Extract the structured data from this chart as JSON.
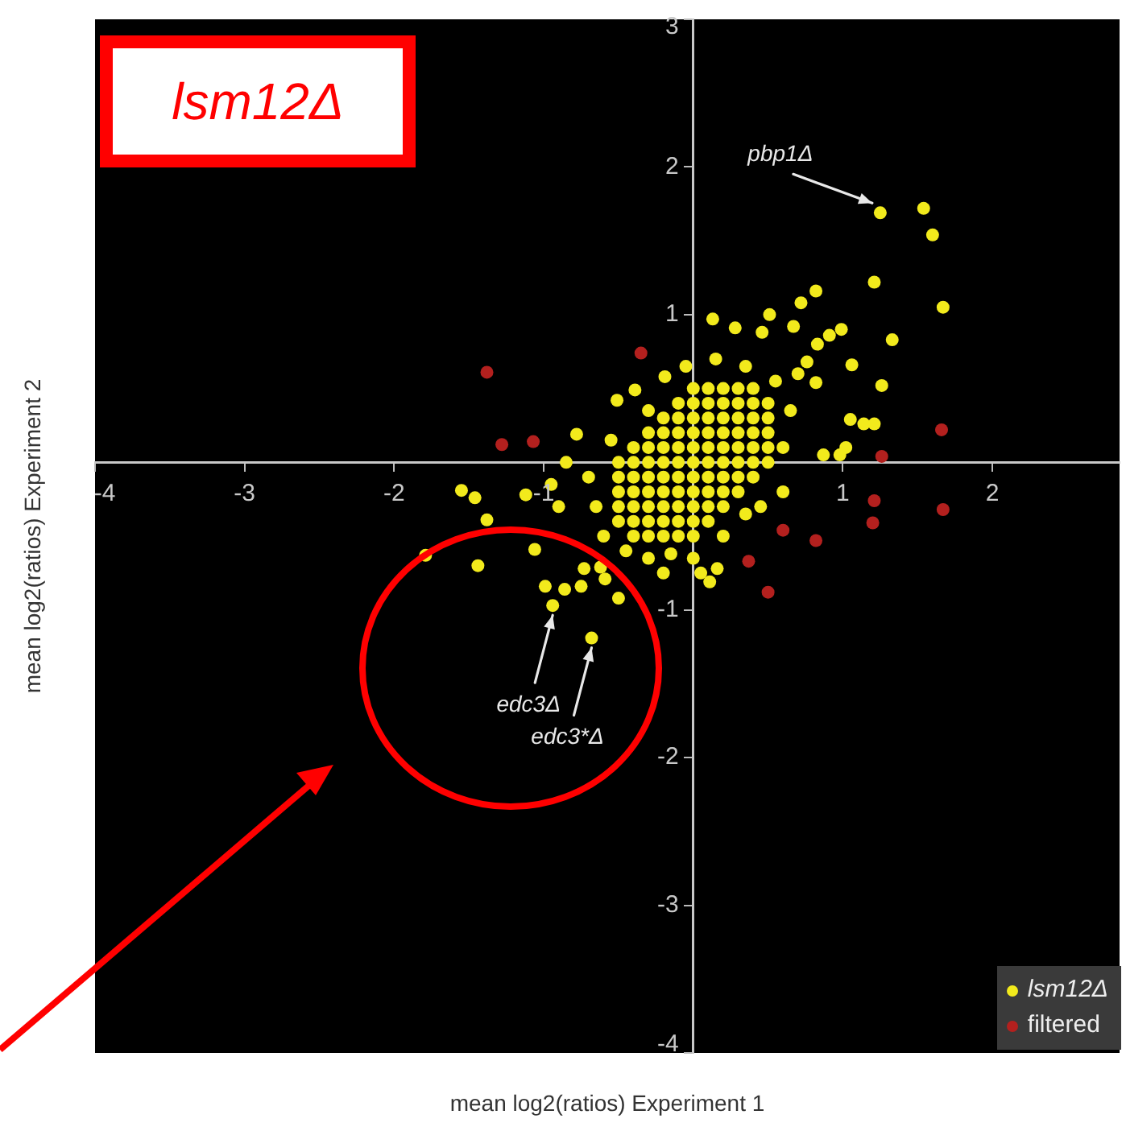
{
  "chart_data": {
    "type": "scatter",
    "title": "lsm12Δ",
    "xlabel": "mean log2(ratios) Experiment 1",
    "ylabel": "mean log2(ratios) Experiment 2",
    "annotations": [
      {
        "text": "pbp1Δ",
        "x": 1.25,
        "y": 1.69
      },
      {
        "text": "edc3Δ",
        "x": -0.94,
        "y": -0.97
      },
      {
        "text": "edc3*Δ",
        "x": -0.68,
        "y": -1.19
      }
    ],
    "series": [
      {
        "name": "lsm12Δ",
        "color": "#f2ea1c",
        "x": [
          -0.5,
          -0.5,
          -0.5,
          -0.5,
          -0.5,
          -0.4,
          -0.4,
          -0.4,
          -0.4,
          -0.4,
          -0.4,
          -0.4,
          -0.3,
          -0.3,
          -0.3,
          -0.3,
          -0.3,
          -0.3,
          -0.3,
          -0.3,
          -0.2,
          -0.2,
          -0.2,
          -0.2,
          -0.2,
          -0.2,
          -0.2,
          -0.2,
          -0.2,
          -0.1,
          -0.1,
          -0.1,
          -0.1,
          -0.1,
          -0.1,
          -0.1,
          -0.1,
          -0.1,
          -0.1,
          0,
          0,
          0,
          0,
          0,
          0,
          0,
          0,
          0,
          0,
          0,
          0.1,
          0.1,
          0.1,
          0.1,
          0.1,
          0.1,
          0.1,
          0.1,
          0.1,
          0.1,
          0.2,
          0.2,
          0.2,
          0.2,
          0.2,
          0.2,
          0.2,
          0.2,
          0.2,
          0.3,
          0.3,
          0.3,
          0.3,
          0.3,
          0.3,
          0.3,
          0.3,
          0.4,
          0.4,
          0.4,
          0.4,
          0.4,
          0.4,
          0.4,
          0.5,
          0.5,
          0.5,
          0.5,
          0.5,
          -0.65,
          -0.6,
          -0.7,
          -0.55,
          -0.45,
          -0.3,
          -0.15,
          0,
          0.2,
          0.35,
          0.6,
          0.65,
          0.55,
          0.35,
          0.15,
          -0.05,
          -0.3,
          -0.9,
          -0.85,
          -0.95,
          0.7,
          0.6,
          0.45,
          0.05,
          -0.2,
          1.25,
          1.54,
          1.6,
          1.67,
          1.21,
          1.33,
          1.06,
          1.26,
          1.05,
          1.14,
          1.21,
          0.98,
          1.02,
          0.82,
          0.72,
          0.51,
          0.99,
          0.91,
          0.67,
          0.83,
          0.76,
          0.82,
          0.87,
          0.13,
          0.28,
          0.46,
          -1.55,
          -1.46,
          -1.38,
          -1.12,
          -1.06,
          -1.44,
          -1.79,
          -0.99,
          -0.86,
          -0.75,
          -0.62,
          -0.5,
          -0.78,
          -0.51,
          -0.39,
          -0.19,
          0.11,
          0.16,
          -0.94,
          -0.68,
          -0.59,
          -0.73
        ],
        "values": [
          -0.4,
          -0.3,
          -0.2,
          -0.1,
          0,
          -0.5,
          -0.4,
          -0.3,
          -0.2,
          -0.1,
          0,
          0.1,
          -0.5,
          -0.4,
          -0.3,
          -0.2,
          -0.1,
          0,
          0.1,
          0.2,
          -0.5,
          -0.4,
          -0.3,
          -0.2,
          -0.1,
          0,
          0.1,
          0.2,
          0.3,
          -0.5,
          -0.4,
          -0.3,
          -0.2,
          -0.1,
          0,
          0.1,
          0.2,
          0.3,
          0.4,
          -0.5,
          -0.4,
          -0.3,
          -0.2,
          -0.1,
          0,
          0.1,
          0.2,
          0.3,
          0.4,
          0.5,
          -0.4,
          -0.3,
          -0.2,
          -0.1,
          0,
          0.1,
          0.2,
          0.3,
          0.4,
          0.5,
          -0.3,
          -0.2,
          -0.1,
          0,
          0.1,
          0.2,
          0.3,
          0.4,
          0.5,
          -0.2,
          -0.1,
          0,
          0.1,
          0.2,
          0.3,
          0.4,
          0.5,
          -0.1,
          0,
          0.1,
          0.2,
          0.3,
          0.4,
          0.5,
          0,
          0.1,
          0.2,
          0.3,
          0.4,
          -0.3,
          -0.5,
          -0.1,
          0.15,
          -0.6,
          -0.65,
          -0.62,
          -0.65,
          -0.5,
          -0.35,
          0.1,
          0.35,
          0.55,
          0.65,
          0.7,
          0.65,
          0.35,
          -0.3,
          0,
          -0.15,
          0.6,
          -0.2,
          -0.3,
          -0.75,
          -0.75,
          1.69,
          1.72,
          1.54,
          1.05,
          1.22,
          0.83,
          0.66,
          0.52,
          0.29,
          0.26,
          0.26,
          0.05,
          0.1,
          1.16,
          1.08,
          1,
          0.9,
          0.86,
          0.92,
          0.8,
          0.68,
          0.54,
          0.05,
          0.97,
          0.91,
          0.88,
          -0.19,
          -0.24,
          -0.39,
          -0.22,
          -0.59,
          -0.7,
          -0.63,
          -0.84,
          -0.86,
          -0.84,
          -0.71,
          -0.92,
          0.19,
          0.42,
          0.49,
          0.58,
          -0.81,
          -0.72,
          -0.97,
          -1.19,
          -0.79,
          -0.72
        ]
      },
      {
        "name": "filtered",
        "color": "#b3201e",
        "x": [
          -0.35,
          -1.38,
          -1.28,
          -1.07,
          0.6,
          0.37,
          0.5,
          1.66,
          1.26,
          1.21,
          1.2,
          1.67,
          0.82
        ],
        "values": [
          0.74,
          0.61,
          0.12,
          0.14,
          -0.46,
          -0.67,
          -0.88,
          0.22,
          0.04,
          -0.26,
          -0.41,
          -0.32,
          -0.53
        ]
      }
    ],
    "xlim": [
      -4,
      2.85
    ],
    "ylim": [
      -4,
      3
    ],
    "xticks": [
      -4,
      -3,
      -2,
      -1,
      {
        "value": 0,
        "label": null
      },
      1,
      2
    ],
    "yticks": [
      -4,
      -3,
      -2,
      -1,
      {
        "value": 0,
        "label": null
      },
      1,
      2,
      3
    ],
    "grid": false,
    "legend": "bottom right",
    "marker": "circle"
  }
}
